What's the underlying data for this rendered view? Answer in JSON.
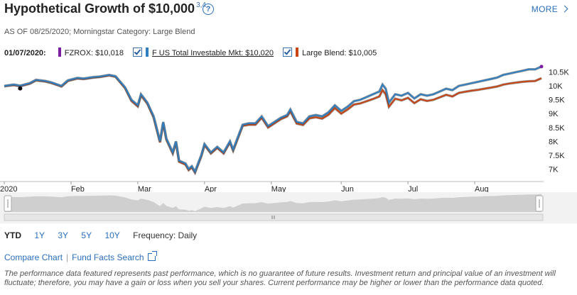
{
  "header": {
    "title": "Hypothetical Growth of $10,000",
    "footnote": "3,4",
    "help_icon": "question-circle-icon",
    "more_label": "MORE"
  },
  "as_of": "AS OF 08/25/2020; Morningstar Category: Large Blend",
  "legend": {
    "date": "01/07/2020:",
    "items": [
      {
        "label": "FZROX: $10,018",
        "color": "#7b1fa2",
        "checkbox": false
      },
      {
        "label": "F US Total Investable Mkt: $10,020",
        "color": "#2f7fc1",
        "checkbox": true
      },
      {
        "label": "Large Blend: $10,005",
        "color": "#c84412",
        "checkbox": true
      }
    ]
  },
  "chart_data": {
    "type": "line",
    "x_labels": [
      "2020",
      "Feb",
      "Mar",
      "Apr",
      "May",
      "Jun",
      "Jul",
      "Aug"
    ],
    "y_ticks": [
      "10.5K",
      "10K",
      "9.5K",
      "9K",
      "8.5K",
      "8K",
      "7.5K",
      "7K"
    ],
    "ylim": [
      6700,
      10800
    ],
    "grid": false,
    "y_axis_side": "right",
    "series": [
      {
        "name": "F US Total Investable Mkt",
        "color": "#2f7fc1",
        "points": [
          [
            0,
            10000
          ],
          [
            3,
            10050
          ],
          [
            5,
            10010
          ],
          [
            8,
            10100
          ],
          [
            10,
            10220
          ],
          [
            13,
            10180
          ],
          [
            15,
            10120
          ],
          [
            18,
            10000
          ],
          [
            20,
            10200
          ],
          [
            23,
            10290
          ],
          [
            25,
            10270
          ],
          [
            28,
            10320
          ],
          [
            30,
            10340
          ],
          [
            33,
            10400
          ],
          [
            35,
            10350
          ],
          [
            38,
            9950
          ],
          [
            40,
            9500
          ],
          [
            42,
            9300
          ],
          [
            43,
            9700
          ],
          [
            45,
            9400
          ],
          [
            47,
            8900
          ],
          [
            49,
            8000
          ],
          [
            50,
            8700
          ],
          [
            51,
            8100
          ],
          [
            53,
            7600
          ],
          [
            54,
            8000
          ],
          [
            55,
            7300
          ],
          [
            57,
            7200
          ],
          [
            58,
            7000
          ],
          [
            59,
            7100
          ],
          [
            60,
            6900
          ],
          [
            62,
            7500
          ],
          [
            63,
            7900
          ],
          [
            65,
            7600
          ],
          [
            67,
            7800
          ],
          [
            69,
            7600
          ],
          [
            71,
            8000
          ],
          [
            72,
            7700
          ],
          [
            74,
            8300
          ],
          [
            75,
            8600
          ],
          [
            77,
            8650
          ],
          [
            79,
            8650
          ],
          [
            81,
            8900
          ],
          [
            83,
            8550
          ],
          [
            85,
            8700
          ],
          [
            87,
            8850
          ],
          [
            89,
            8950
          ],
          [
            90,
            9150
          ],
          [
            92,
            8700
          ],
          [
            94,
            8650
          ],
          [
            96,
            8900
          ],
          [
            98,
            8950
          ],
          [
            100,
            8900
          ],
          [
            102,
            9050
          ],
          [
            104,
            9300
          ],
          [
            106,
            9100
          ],
          [
            108,
            9250
          ],
          [
            110,
            9450
          ],
          [
            112,
            9500
          ],
          [
            114,
            9600
          ],
          [
            116,
            9700
          ],
          [
            118,
            9800
          ],
          [
            119,
            10050
          ],
          [
            120,
            9900
          ],
          [
            121,
            9400
          ],
          [
            123,
            9700
          ],
          [
            125,
            9650
          ],
          [
            127,
            9750
          ],
          [
            129,
            9550
          ],
          [
            131,
            9700
          ],
          [
            133,
            9650
          ],
          [
            135,
            9700
          ],
          [
            137,
            9800
          ],
          [
            139,
            9900
          ],
          [
            141,
            9850
          ],
          [
            143,
            10000
          ],
          [
            145,
            10050
          ],
          [
            147,
            10100
          ],
          [
            149,
            10150
          ],
          [
            151,
            10200
          ],
          [
            153,
            10250
          ],
          [
            155,
            10300
          ],
          [
            157,
            10400
          ],
          [
            159,
            10450
          ],
          [
            161,
            10500
          ],
          [
            163,
            10550
          ],
          [
            165,
            10600
          ],
          [
            167,
            10600
          ],
          [
            169,
            10700
          ]
        ]
      },
      {
        "name": "Large Blend",
        "color": "#c84412",
        "points": [
          [
            0,
            9990
          ],
          [
            3,
            10030
          ],
          [
            5,
            9990
          ],
          [
            8,
            10080
          ],
          [
            10,
            10200
          ],
          [
            13,
            10160
          ],
          [
            15,
            10100
          ],
          [
            18,
            9980
          ],
          [
            20,
            10180
          ],
          [
            23,
            10270
          ],
          [
            25,
            10250
          ],
          [
            28,
            10300
          ],
          [
            30,
            10320
          ],
          [
            33,
            10380
          ],
          [
            35,
            10330
          ],
          [
            38,
            9920
          ],
          [
            40,
            9460
          ],
          [
            42,
            9260
          ],
          [
            43,
            9660
          ],
          [
            45,
            9360
          ],
          [
            47,
            8860
          ],
          [
            49,
            7960
          ],
          [
            50,
            8660
          ],
          [
            51,
            8060
          ],
          [
            53,
            7560
          ],
          [
            54,
            7960
          ],
          [
            55,
            7260
          ],
          [
            57,
            7160
          ],
          [
            58,
            6960
          ],
          [
            59,
            7060
          ],
          [
            60,
            6870
          ],
          [
            62,
            7460
          ],
          [
            63,
            7860
          ],
          [
            65,
            7560
          ],
          [
            67,
            7760
          ],
          [
            69,
            7560
          ],
          [
            71,
            7960
          ],
          [
            72,
            7660
          ],
          [
            74,
            8260
          ],
          [
            75,
            8560
          ],
          [
            77,
            8600
          ],
          [
            79,
            8600
          ],
          [
            81,
            8850
          ],
          [
            83,
            8500
          ],
          [
            85,
            8650
          ],
          [
            87,
            8800
          ],
          [
            89,
            8900
          ],
          [
            90,
            9080
          ],
          [
            92,
            8640
          ],
          [
            94,
            8590
          ],
          [
            96,
            8830
          ],
          [
            98,
            8870
          ],
          [
            100,
            8820
          ],
          [
            102,
            8960
          ],
          [
            104,
            9200
          ],
          [
            106,
            9000
          ],
          [
            108,
            9150
          ],
          [
            110,
            9330
          ],
          [
            112,
            9370
          ],
          [
            114,
            9450
          ],
          [
            116,
            9530
          ],
          [
            118,
            9620
          ],
          [
            119,
            9850
          ],
          [
            120,
            9700
          ],
          [
            121,
            9250
          ],
          [
            123,
            9540
          ],
          [
            125,
            9480
          ],
          [
            127,
            9570
          ],
          [
            129,
            9380
          ],
          [
            131,
            9520
          ],
          [
            133,
            9460
          ],
          [
            135,
            9500
          ],
          [
            137,
            9590
          ],
          [
            139,
            9680
          ],
          [
            141,
            9620
          ],
          [
            143,
            9750
          ],
          [
            145,
            9790
          ],
          [
            147,
            9830
          ],
          [
            149,
            9860
          ],
          [
            151,
            9900
          ],
          [
            153,
            9940
          ],
          [
            155,
            9980
          ],
          [
            157,
            10050
          ],
          [
            159,
            10090
          ],
          [
            161,
            10120
          ],
          [
            163,
            10150
          ],
          [
            165,
            10170
          ],
          [
            167,
            10180
          ],
          [
            169,
            10280
          ]
        ]
      }
    ]
  },
  "range": {
    "options": [
      "YTD",
      "1Y",
      "3Y",
      "5Y",
      "10Y"
    ],
    "active": "YTD",
    "frequency_label": "Frequency: Daily"
  },
  "links": {
    "compare": "Compare Chart",
    "separator": "|",
    "fund_facts": "Fund Facts Search",
    "ext_icon": "external-link-icon"
  },
  "disclaimer": "The performance data featured represents past performance, which is no guarantee of future results. Investment return and principal value of an investment will fluctuate; therefore, you may have a gain or loss when you sell your shares. Current performance may be higher or lower than the performance data quoted."
}
